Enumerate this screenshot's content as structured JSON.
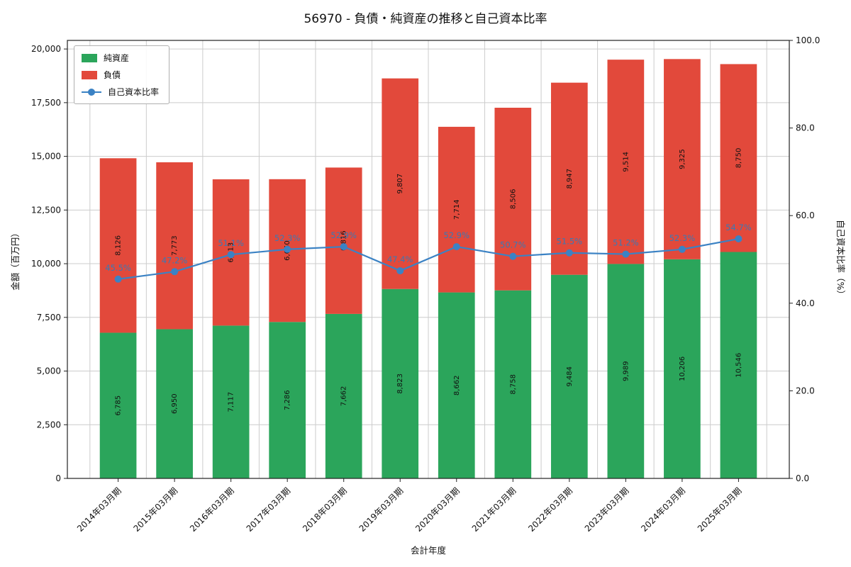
{
  "title": "56970 - 負債・純資産の推移と自己資本比率",
  "chart_data": {
    "type": "bar",
    "subtype": "stacked-bars-with-line",
    "title": "56970 - 負債・純資産の推移と自己資本比率",
    "categories": [
      "2014年03月期",
      "2015年03月期",
      "2016年03月期",
      "2017年03月期",
      "2018年03月期",
      "2019年03月期",
      "2020年03月期",
      "2021年03月期",
      "2022年03月期",
      "2023年03月期",
      "2024年03月期",
      "2025年03月期"
    ],
    "series": [
      {
        "name": "純資産",
        "type": "bar",
        "axis": "left",
        "color": "#2ba55b",
        "values": [
          6785,
          6950,
          7117,
          7286,
          7662,
          8823,
          8662,
          8758,
          9484,
          9989,
          10206,
          10546
        ]
      },
      {
        "name": "負債",
        "type": "bar",
        "axis": "left",
        "color": "#e2493b",
        "values": [
          8126,
          7773,
          6813,
          6650,
          6816,
          9807,
          7714,
          8506,
          8947,
          9514,
          9325,
          8750
        ]
      },
      {
        "name": "自己資本比率",
        "type": "line",
        "axis": "right",
        "color": "#3b82c4",
        "unit": "%",
        "values": [
          45.5,
          47.2,
          51.1,
          52.3,
          52.9,
          47.4,
          52.9,
          50.7,
          51.5,
          51.2,
          52.3,
          54.7
        ]
      }
    ],
    "xlabel": "会計年度",
    "ylabel_left": "金額（百万円）",
    "ylabel_right": "自己資本比率（%）",
    "ylim_left": [
      0,
      20400
    ],
    "ylim_right": [
      0,
      100
    ],
    "yticks_left": [
      0,
      2500,
      5000,
      7500,
      10000,
      12500,
      15000,
      17500,
      20000
    ],
    "yticks_right": [
      0,
      20,
      40,
      60,
      80,
      100
    ],
    "grid": true,
    "legend_position": "upper-left",
    "percent_label_color": "#3a79b5",
    "grid_color": "#cccccc",
    "frame_color": "#222222",
    "text_color": "#111111"
  }
}
